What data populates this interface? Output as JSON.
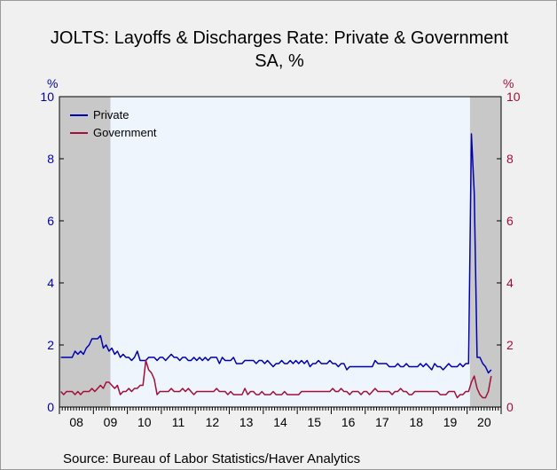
{
  "title": "JOLTS: Layoffs & Discharges Rate: Private & Government",
  "subtitle": "SA, %",
  "source": "Source:  Bureau of Labor Statistics/Haver Analytics",
  "chart_data": {
    "type": "line",
    "x_start": "2008-01",
    "x_frequency": "monthly",
    "xlim": [
      "2008-01",
      "2020-12"
    ],
    "x_tick_labels": [
      "08",
      "09",
      "10",
      "11",
      "12",
      "13",
      "14",
      "15",
      "16",
      "17",
      "18",
      "19",
      "20"
    ],
    "y_left": {
      "unit": "%",
      "ylim": [
        0,
        10
      ],
      "ticks": [
        "0",
        "2",
        "4",
        "6",
        "8",
        "10"
      ],
      "color": "#0000b0"
    },
    "y_right": {
      "unit": "%",
      "ylim": [
        0,
        10
      ],
      "ticks": [
        "0",
        "2",
        "4",
        "6",
        "8",
        "10"
      ],
      "color": "#a0103a"
    },
    "legend_position": "top-left",
    "recession_shading": [
      {
        "start": "2008-01",
        "end": "2009-06"
      },
      {
        "start": "2020-02",
        "end": "2020-12"
      }
    ],
    "colors": {
      "plot_background": "#eef5fd",
      "recession": "#c8c8c8"
    },
    "series": [
      {
        "name": "Private",
        "color": "#0000b0",
        "values": [
          1.6,
          1.6,
          1.6,
          1.6,
          1.6,
          1.8,
          1.7,
          1.8,
          1.7,
          1.9,
          2.0,
          2.2,
          2.2,
          2.2,
          2.3,
          1.9,
          2.0,
          1.8,
          1.9,
          1.7,
          1.8,
          1.6,
          1.7,
          1.6,
          1.6,
          1.5,
          1.6,
          1.8,
          1.5,
          1.5,
          1.5,
          1.6,
          1.6,
          1.6,
          1.5,
          1.6,
          1.6,
          1.5,
          1.6,
          1.7,
          1.6,
          1.6,
          1.5,
          1.6,
          1.6,
          1.5,
          1.5,
          1.6,
          1.5,
          1.6,
          1.5,
          1.6,
          1.5,
          1.6,
          1.6,
          1.6,
          1.4,
          1.6,
          1.5,
          1.5,
          1.5,
          1.6,
          1.4,
          1.4,
          1.4,
          1.5,
          1.5,
          1.5,
          1.5,
          1.4,
          1.5,
          1.5,
          1.4,
          1.5,
          1.4,
          1.3,
          1.4,
          1.4,
          1.5,
          1.4,
          1.4,
          1.5,
          1.4,
          1.5,
          1.4,
          1.5,
          1.4,
          1.5,
          1.3,
          1.4,
          1.4,
          1.5,
          1.4,
          1.4,
          1.4,
          1.5,
          1.4,
          1.4,
          1.3,
          1.4,
          1.4,
          1.2,
          1.3,
          1.3,
          1.3,
          1.3,
          1.3,
          1.3,
          1.3,
          1.3,
          1.3,
          1.5,
          1.4,
          1.4,
          1.4,
          1.4,
          1.3,
          1.3,
          1.3,
          1.4,
          1.3,
          1.3,
          1.4,
          1.3,
          1.3,
          1.3,
          1.3,
          1.4,
          1.3,
          1.4,
          1.3,
          1.2,
          1.4,
          1.3,
          1.3,
          1.2,
          1.3,
          1.4,
          1.3,
          1.3,
          1.3,
          1.4,
          1.3,
          1.4,
          1.4,
          8.8,
          6.9,
          1.6,
          1.6,
          1.4,
          1.3,
          1.1,
          1.2
        ]
      },
      {
        "name": "Government",
        "color": "#a0103a",
        "values": [
          0.5,
          0.4,
          0.5,
          0.5,
          0.5,
          0.4,
          0.5,
          0.4,
          0.5,
          0.5,
          0.5,
          0.6,
          0.5,
          0.6,
          0.7,
          0.6,
          0.8,
          0.8,
          0.7,
          0.6,
          0.7,
          0.4,
          0.5,
          0.5,
          0.6,
          0.5,
          0.6,
          0.6,
          0.7,
          0.7,
          1.5,
          1.2,
          1.1,
          0.9,
          0.4,
          0.5,
          0.5,
          0.5,
          0.5,
          0.6,
          0.5,
          0.5,
          0.5,
          0.6,
          0.5,
          0.6,
          0.5,
          0.4,
          0.5,
          0.5,
          0.5,
          0.5,
          0.5,
          0.5,
          0.5,
          0.6,
          0.5,
          0.5,
          0.5,
          0.4,
          0.5,
          0.4,
          0.4,
          0.4,
          0.4,
          0.6,
          0.4,
          0.5,
          0.5,
          0.4,
          0.4,
          0.5,
          0.4,
          0.4,
          0.4,
          0.5,
          0.4,
          0.4,
          0.4,
          0.5,
          0.4,
          0.4,
          0.4,
          0.4,
          0.4,
          0.5,
          0.5,
          0.5,
          0.5,
          0.5,
          0.5,
          0.5,
          0.5,
          0.5,
          0.5,
          0.5,
          0.6,
          0.5,
          0.5,
          0.6,
          0.5,
          0.5,
          0.4,
          0.5,
          0.5,
          0.5,
          0.4,
          0.5,
          0.5,
          0.4,
          0.5,
          0.6,
          0.5,
          0.5,
          0.5,
          0.5,
          0.5,
          0.4,
          0.5,
          0.5,
          0.6,
          0.5,
          0.5,
          0.4,
          0.4,
          0.5,
          0.5,
          0.5,
          0.5,
          0.5,
          0.5,
          0.5,
          0.5,
          0.5,
          0.4,
          0.4,
          0.4,
          0.5,
          0.5,
          0.5,
          0.3,
          0.4,
          0.4,
          0.5,
          0.5,
          0.8,
          1.0,
          0.6,
          0.4,
          0.3,
          0.3,
          0.5,
          1.0
        ]
      }
    ]
  }
}
